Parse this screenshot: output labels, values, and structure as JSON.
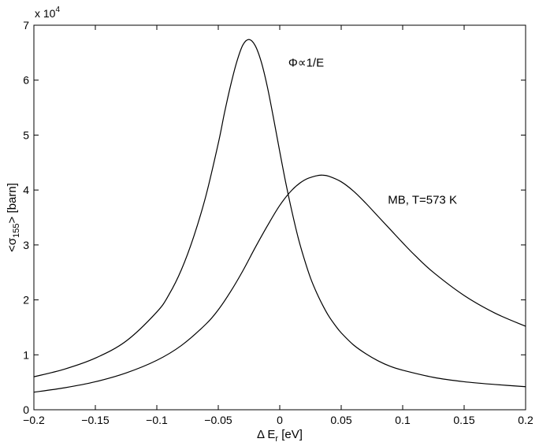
{
  "chart_data": {
    "type": "line",
    "xlabel": {
      "main": "Δ E",
      "sub": "r",
      "unit": " [eV]"
    },
    "ylabel": {
      "pre": "<σ",
      "sub": "155",
      "post": "> [barn]"
    },
    "y_multiplier": {
      "base": "x 10",
      "exp": "4"
    },
    "xlim": [
      -0.2,
      0.2
    ],
    "ylim": [
      0,
      70000
    ],
    "x_ticks": [
      -0.2,
      -0.15,
      -0.1,
      -0.05,
      0,
      0.05,
      0.1,
      0.15,
      0.2
    ],
    "x_tick_labels": [
      "−0.2",
      "−0.15",
      "−0.1",
      "−0.05",
      "0",
      "0.05",
      "0.1",
      "0.15",
      "0.2"
    ],
    "y_ticks": [
      0,
      10000,
      20000,
      30000,
      40000,
      50000,
      60000,
      70000
    ],
    "y_tick_labels": [
      "0",
      "1",
      "2",
      "3",
      "4",
      "5",
      "6",
      "7"
    ],
    "grid": false,
    "series": [
      {
        "label": "Φ∝1/E",
        "x": [
          -0.2,
          -0.175,
          -0.15,
          -0.125,
          -0.1,
          -0.09,
          -0.08,
          -0.07,
          -0.06,
          -0.05,
          -0.045,
          -0.04,
          -0.035,
          -0.03,
          -0.025,
          -0.02,
          -0.015,
          -0.01,
          -0.005,
          0,
          0.005,
          0.01,
          0.015,
          0.02,
          0.025,
          0.03,
          0.035,
          0.04,
          0.045,
          0.05,
          0.06,
          0.07,
          0.08,
          0.09,
          0.1,
          0.125,
          0.15,
          0.175,
          0.2
        ],
        "y": [
          6000,
          7400,
          9400,
          12500,
          17800,
          21000,
          25500,
          31500,
          39000,
          48500,
          54000,
          59000,
          63300,
          66400,
          67400,
          66300,
          63300,
          58700,
          53000,
          47000,
          41200,
          36000,
          31300,
          27400,
          24000,
          21300,
          19000,
          17000,
          15400,
          14000,
          11800,
          10200,
          8900,
          7900,
          7200,
          5900,
          5100,
          4600,
          4200
        ]
      },
      {
        "label": "MB, T=573 K",
        "x": [
          -0.2,
          -0.175,
          -0.15,
          -0.125,
          -0.1,
          -0.08,
          -0.06,
          -0.05,
          -0.04,
          -0.03,
          -0.02,
          -0.01,
          0,
          0.01,
          0.02,
          0.03,
          0.035,
          0.04,
          0.05,
          0.06,
          0.07,
          0.08,
          0.09,
          0.1,
          0.11,
          0.125,
          0.15,
          0.175,
          0.2
        ],
        "y": [
          3200,
          4000,
          5100,
          6700,
          9000,
          11700,
          15600,
          18200,
          21500,
          25300,
          29500,
          33500,
          37200,
          40000,
          41800,
          42600,
          42700,
          42500,
          41500,
          39800,
          37600,
          35200,
          32800,
          30400,
          28100,
          25000,
          20800,
          17600,
          15200
        ]
      }
    ],
    "annotations": [
      {
        "text": "Φ∝1/E",
        "x": 0.007,
        "y": 62500
      },
      {
        "text": "MB, T=573 K",
        "x": 0.088,
        "y": 37500
      }
    ]
  }
}
